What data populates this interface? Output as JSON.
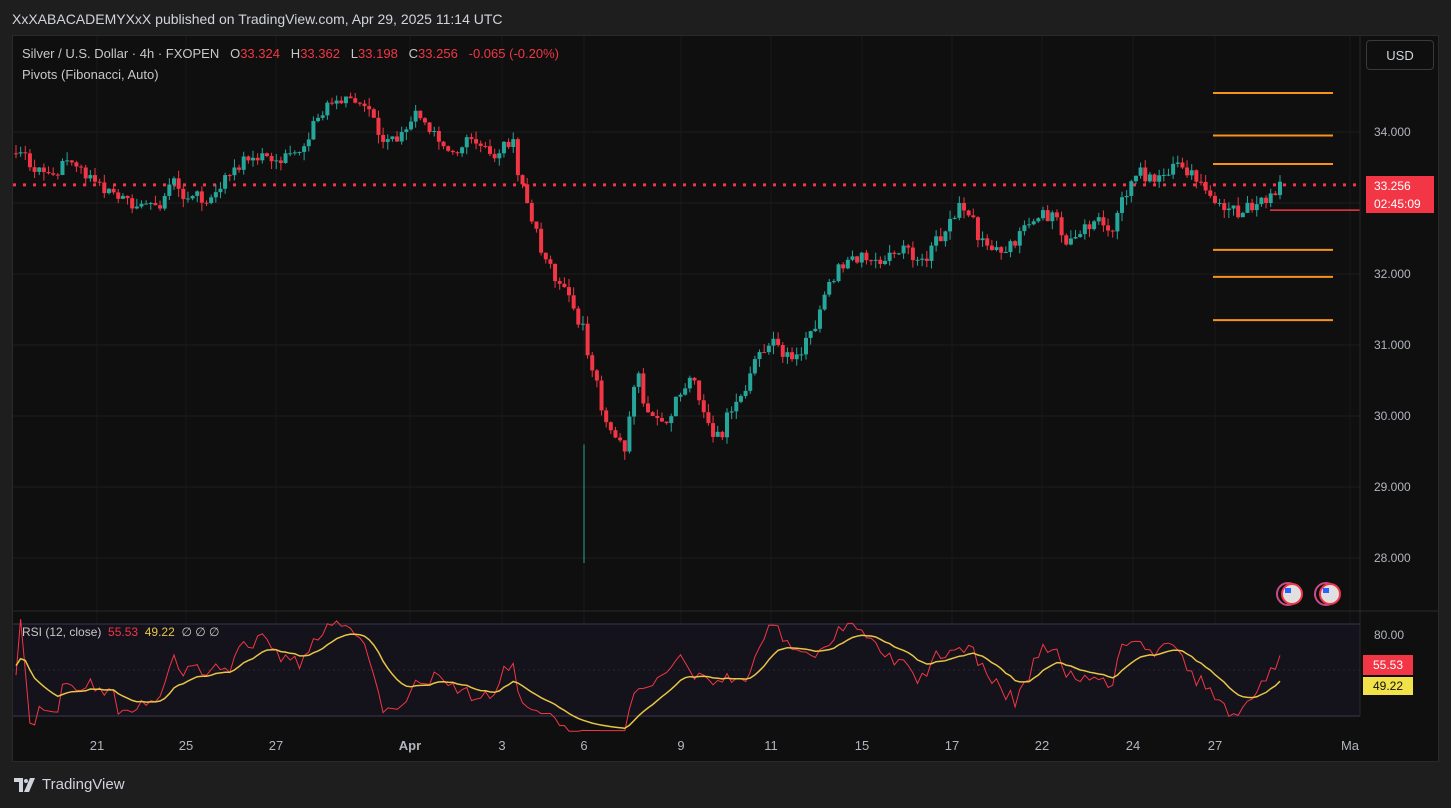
{
  "header": {
    "published_text": "XxXABACADEMYXxX published on TradingView.com, Apr 29, 2025 11:14 UTC"
  },
  "legend": {
    "symbol": "Silver / U.S. Dollar · 4h · FXOPEN",
    "o_label": "O",
    "o_value": "33.324",
    "h_label": "H",
    "h_value": "33.362",
    "l_label": "L",
    "l_value": "33.198",
    "c_label": "C",
    "c_value": "33.256",
    "change": "-0.065 (-0.20%)",
    "indicator": "Pivots (Fibonacci, Auto)"
  },
  "currency_button": "USD",
  "price_axis": {
    "ticks": [
      "34.000",
      "33.000",
      "32.000",
      "31.000",
      "30.000",
      "29.000",
      "28.000"
    ]
  },
  "last_price": {
    "value": "33.256",
    "countdown": "02:45:09"
  },
  "rsi": {
    "label": "RSI (12, close)",
    "rsi_value": "55.53",
    "ma_value": "49.22",
    "extras": "∅ ∅ ∅",
    "axis_tick": "80.00"
  },
  "time_axis": {
    "labels": [
      "21",
      "25",
      "27",
      "Apr",
      "3",
      "6",
      "9",
      "11",
      "15",
      "17",
      "22",
      "24",
      "27",
      "Ma"
    ]
  },
  "footer": {
    "brand": "TradingView"
  },
  "colors": {
    "up": "#26a69a",
    "down": "#f23645",
    "pivot": "#f7931a",
    "rsi_line": "#f23645",
    "rsi_ma": "#e8c547",
    "background": "#0f0f0f"
  },
  "chart_data": {
    "type": "candlestick",
    "ylim": [
      27.5,
      35.5
    ],
    "pivot_levels": [
      34.55,
      33.95,
      33.55,
      32.34,
      31.96,
      31.35
    ],
    "last_close": 33.256,
    "pivot_r_line": 32.9,
    "series_close_approx": [
      33.7,
      33.5,
      33.4,
      33.6,
      33.5,
      33.3,
      33.2,
      33.1,
      32.95,
      33.0,
      33.1,
      33.2,
      33.1,
      33.0,
      33.2,
      33.5,
      33.6,
      33.7,
      33.6,
      33.7,
      33.8,
      34.2,
      34.4,
      34.5,
      34.4,
      34.2,
      33.9,
      34.0,
      34.3,
      34.0,
      33.8,
      33.7,
      33.9,
      33.8,
      33.7,
      33.9,
      33.0,
      32.3,
      31.9,
      31.7,
      31.3,
      30.5,
      29.8,
      29.5,
      30.6,
      30.0,
      29.9,
      30.3,
      30.5,
      29.9,
      29.7,
      30.2,
      30.6,
      30.9,
      31.0,
      30.8,
      31.1,
      31.5,
      31.9,
      32.2,
      32.3,
      32.2,
      32.3,
      32.4,
      32.2,
      32.4,
      32.6,
      33.0,
      32.8,
      32.4,
      32.3,
      32.4,
      32.7,
      32.9,
      32.8,
      32.5,
      32.7,
      32.8,
      32.6,
      33.1,
      33.5,
      33.3,
      33.4,
      33.5,
      33.3,
      33.1,
      32.9,
      32.8,
      32.9,
      33.0,
      33.3
    ]
  }
}
